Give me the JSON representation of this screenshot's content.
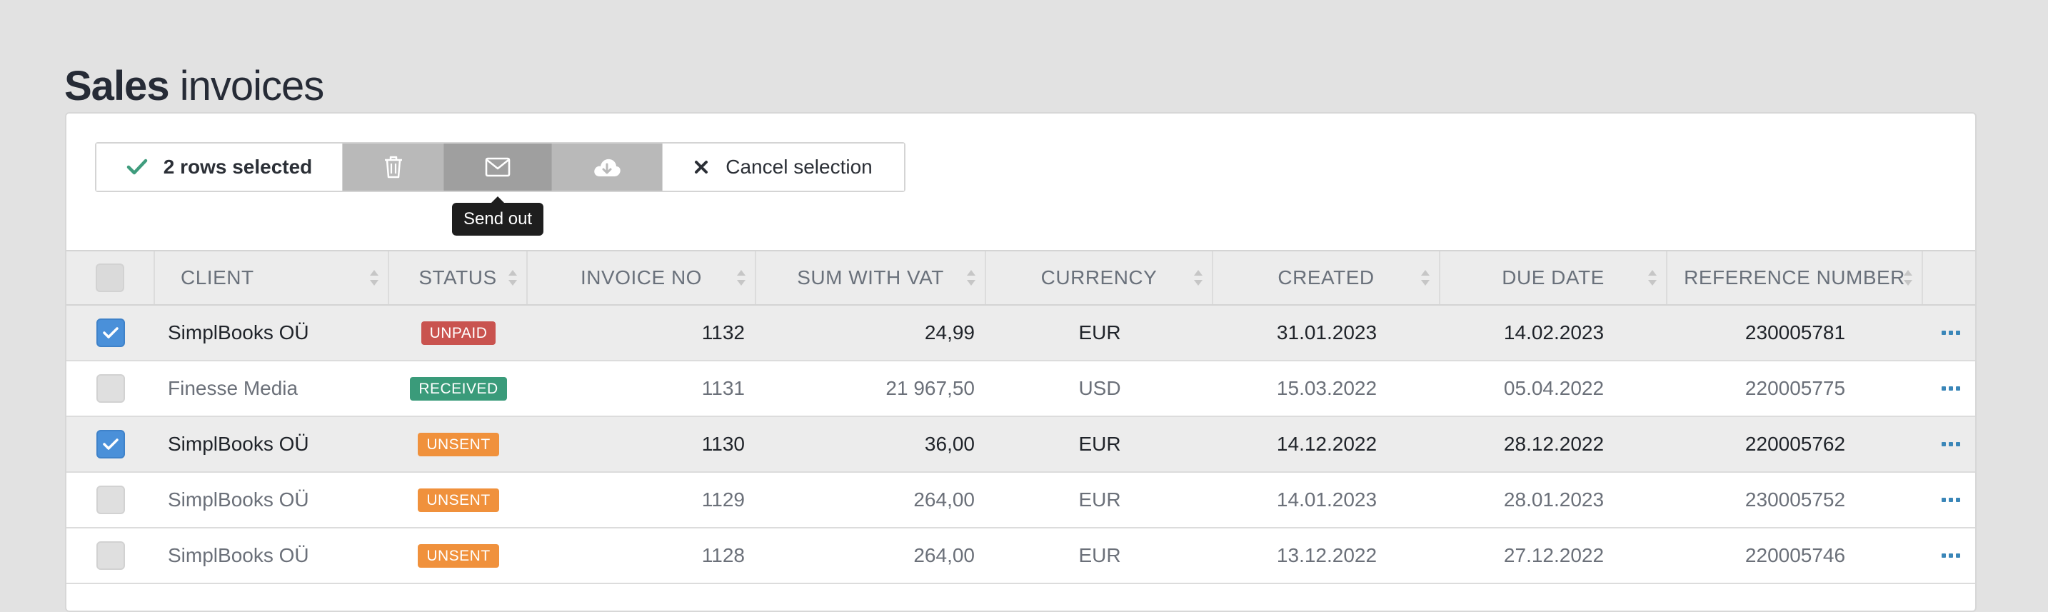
{
  "page": {
    "title_strong": "Sales",
    "title_light": "invoices"
  },
  "toolbar": {
    "selected_label": "2 rows selected",
    "selected_icon": "check-icon",
    "delete_icon": "trash-icon",
    "send_icon": "envelope-icon",
    "download_icon": "cloud-download-icon",
    "cancel_label": "Cancel selection",
    "cancel_icon": "close-icon",
    "tooltip": "Send out"
  },
  "table": {
    "columns": [
      "CLIENT",
      "STATUS",
      "INVOICE NO",
      "SUM WITH VAT",
      "CURRENCY",
      "CREATED",
      "DUE DATE",
      "REFERENCE NUMBER"
    ],
    "rows": [
      {
        "checked": true,
        "client": "SimplBooks OÜ",
        "status": "UNPAID",
        "status_color": "#c9534f",
        "invoice_no": "1132",
        "sum": "24,99",
        "currency": "EUR",
        "created": "31.01.2023",
        "due": "14.02.2023",
        "reference": "230005781"
      },
      {
        "checked": false,
        "client": "Finesse Media",
        "status": "RECEIVED",
        "status_color": "#3a9b7a",
        "invoice_no": "1131",
        "sum": "21 967,50",
        "currency": "USD",
        "created": "15.03.2022",
        "due": "05.04.2022",
        "reference": "220005775"
      },
      {
        "checked": true,
        "client": "SimplBooks OÜ",
        "status": "UNSENT",
        "status_color": "#f0913c",
        "invoice_no": "1130",
        "sum": "36,00",
        "currency": "EUR",
        "created": "14.12.2022",
        "due": "28.12.2022",
        "reference": "220005762"
      },
      {
        "checked": false,
        "client": "SimplBooks OÜ",
        "status": "UNSENT",
        "status_color": "#f0913c",
        "invoice_no": "1129",
        "sum": "264,00",
        "currency": "EUR",
        "created": "14.01.2023",
        "due": "28.01.2023",
        "reference": "230005752"
      },
      {
        "checked": false,
        "client": "SimplBooks OÜ",
        "status": "UNSENT",
        "status_color": "#f0913c",
        "invoice_no": "1128",
        "sum": "264,00",
        "currency": "EUR",
        "created": "13.12.2022",
        "due": "27.12.2022",
        "reference": "220005746"
      }
    ]
  },
  "colors": {
    "accent_blue": "#4a90d9",
    "check_green": "#3f9c7d",
    "more_dots": "#3a86b8"
  }
}
